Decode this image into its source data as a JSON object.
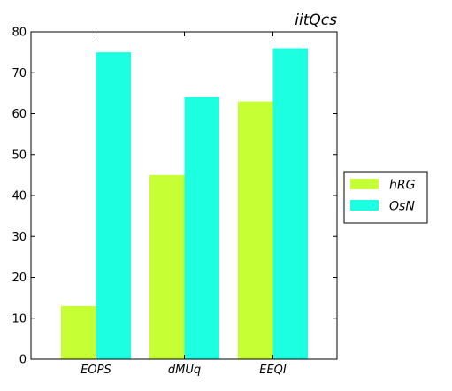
{
  "chart_data": {
    "type": "bar",
    "title": "iitQcs",
    "xlabel": "",
    "ylabel": "",
    "categories": [
      "EOPS",
      "dMUq",
      "EEQI"
    ],
    "series": [
      {
        "name": "hRG",
        "values": [
          13,
          45,
          63
        ],
        "color": "#c6ff33"
      },
      {
        "name": "OsN",
        "values": [
          75,
          64,
          76
        ],
        "color": "#1cffe0"
      }
    ],
    "ylim": [
      0,
      80
    ],
    "yticks": [
      "0",
      "10",
      "20",
      "30",
      "40",
      "50",
      "60",
      "70",
      "80"
    ],
    "grid": false,
    "legend": {
      "position": "right"
    }
  }
}
